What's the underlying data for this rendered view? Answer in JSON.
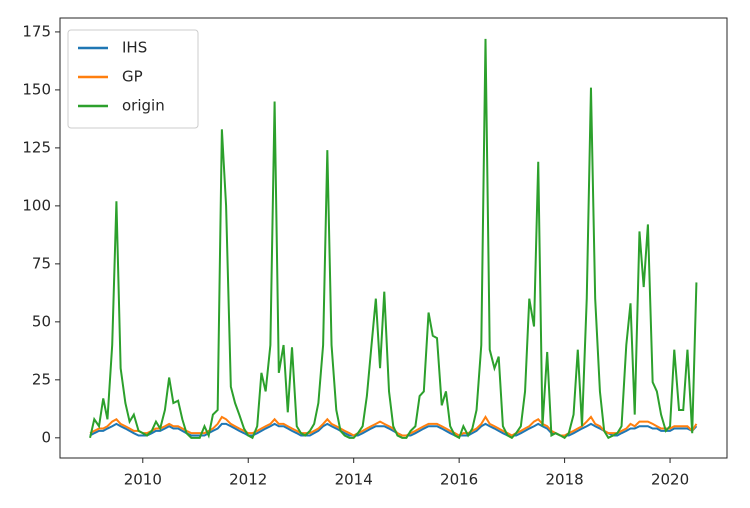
{
  "chart_data": {
    "type": "line",
    "x": [
      2009,
      2009.08,
      2009.17,
      2009.25,
      2009.33,
      2009.42,
      2009.5,
      2009.58,
      2009.67,
      2009.75,
      2009.83,
      2009.92,
      2010,
      2010.08,
      2010.17,
      2010.25,
      2010.33,
      2010.42,
      2010.5,
      2010.58,
      2010.67,
      2010.75,
      2010.83,
      2010.92,
      2011,
      2011.08,
      2011.17,
      2011.25,
      2011.33,
      2011.42,
      2011.5,
      2011.58,
      2011.67,
      2011.75,
      2011.83,
      2011.92,
      2012,
      2012.08,
      2012.17,
      2012.25,
      2012.33,
      2012.42,
      2012.5,
      2012.58,
      2012.67,
      2012.75,
      2012.83,
      2012.92,
      2013,
      2013.08,
      2013.17,
      2013.25,
      2013.33,
      2013.42,
      2013.5,
      2013.58,
      2013.67,
      2013.75,
      2013.83,
      2013.92,
      2014,
      2014.08,
      2014.17,
      2014.25,
      2014.33,
      2014.42,
      2014.5,
      2014.58,
      2014.67,
      2014.75,
      2014.83,
      2014.92,
      2015,
      2015.08,
      2015.17,
      2015.25,
      2015.33,
      2015.42,
      2015.5,
      2015.58,
      2015.67,
      2015.75,
      2015.83,
      2015.92,
      2016,
      2016.08,
      2016.17,
      2016.25,
      2016.33,
      2016.42,
      2016.5,
      2016.58,
      2016.67,
      2016.75,
      2016.83,
      2016.92,
      2017,
      2017.08,
      2017.17,
      2017.25,
      2017.33,
      2017.42,
      2017.5,
      2017.58,
      2017.67,
      2017.75,
      2017.83,
      2017.92,
      2018,
      2018.08,
      2018.17,
      2018.25,
      2018.33,
      2018.42,
      2018.5,
      2018.58,
      2018.67,
      2018.75,
      2018.83,
      2018.92,
      2019,
      2019.08,
      2019.17,
      2019.25,
      2019.33,
      2019.42,
      2019.5,
      2019.58,
      2019.67,
      2019.75,
      2019.83,
      2019.92,
      2020,
      2020.08,
      2020.17,
      2020.25,
      2020.33,
      2020.42,
      2020.5
    ],
    "series": [
      {
        "name": "IHS",
        "color": "#1f77b4",
        "values": [
          1,
          2,
          3,
          3,
          4,
          5,
          6,
          5,
          4,
          3,
          2,
          1,
          1,
          1,
          2,
          3,
          3,
          4,
          5,
          4,
          4,
          3,
          2,
          1,
          1,
          1,
          1,
          2,
          3,
          4,
          6,
          6,
          5,
          4,
          3,
          2,
          1,
          1,
          2,
          3,
          4,
          5,
          6,
          5,
          5,
          4,
          3,
          2,
          1,
          1,
          1,
          2,
          3,
          5,
          6,
          5,
          4,
          3,
          2,
          1,
          1,
          1,
          2,
          3,
          4,
          5,
          5,
          5,
          4,
          3,
          2,
          1,
          1,
          1,
          2,
          3,
          4,
          5,
          5,
          5,
          4,
          3,
          2,
          1,
          1,
          1,
          1,
          2,
          3,
          5,
          6,
          5,
          4,
          3,
          2,
          1,
          1,
          1,
          2,
          3,
          4,
          5,
          6,
          5,
          4,
          2,
          2,
          1,
          1,
          1,
          2,
          3,
          4,
          5,
          6,
          5,
          4,
          3,
          2,
          1,
          1,
          2,
          3,
          4,
          4,
          5,
          5,
          5,
          4,
          4,
          3,
          3,
          3,
          4,
          4,
          4,
          4,
          3,
          5
        ]
      },
      {
        "name": "GP",
        "color": "#ff7f0e",
        "values": [
          2,
          3,
          4,
          4,
          5,
          7,
          8,
          6,
          5,
          4,
          3,
          3,
          2,
          2,
          3,
          4,
          4,
          5,
          6,
          5,
          5,
          4,
          3,
          2,
          2,
          2,
          2,
          3,
          4,
          6,
          9,
          8,
          6,
          5,
          4,
          3,
          2,
          2,
          3,
          4,
          5,
          6,
          8,
          6,
          6,
          5,
          4,
          3,
          2,
          2,
          2,
          3,
          4,
          6,
          8,
          6,
          5,
          4,
          3,
          2,
          1,
          2,
          3,
          4,
          5,
          6,
          7,
          6,
          5,
          4,
          2,
          1,
          1,
          2,
          3,
          4,
          5,
          6,
          6,
          6,
          5,
          4,
          3,
          2,
          1,
          2,
          2,
          3,
          4,
          6,
          9,
          6,
          5,
          4,
          3,
          2,
          1,
          2,
          3,
          4,
          5,
          7,
          8,
          6,
          5,
          3,
          2,
          1,
          1,
          2,
          3,
          4,
          5,
          7,
          9,
          6,
          5,
          3,
          2,
          2,
          2,
          3,
          4,
          6,
          5,
          7,
          7,
          7,
          6,
          5,
          4,
          4,
          4,
          5,
          5,
          5,
          5,
          3,
          6
        ]
      },
      {
        "name": "origin",
        "color": "#2ca02c",
        "values": [
          0,
          8,
          5,
          17,
          8,
          40,
          102,
          30,
          15,
          7,
          10,
          3,
          2,
          1,
          3,
          7,
          4,
          12,
          26,
          15,
          16,
          8,
          2,
          0,
          0,
          0,
          5,
          1,
          10,
          12,
          133,
          100,
          22,
          15,
          10,
          4,
          1,
          0,
          5,
          28,
          20,
          40,
          145,
          28,
          40,
          11,
          39,
          5,
          2,
          1,
          3,
          6,
          15,
          40,
          124,
          40,
          12,
          3,
          1,
          0,
          0,
          2,
          5,
          18,
          38,
          60,
          30,
          63,
          20,
          5,
          1,
          0,
          0,
          3,
          5,
          18,
          20,
          54,
          44,
          43,
          14,
          20,
          5,
          1,
          0,
          5,
          1,
          4,
          12,
          40,
          172,
          38,
          30,
          35,
          5,
          1,
          0,
          2,
          5,
          20,
          60,
          48,
          119,
          5,
          37,
          1,
          2,
          1,
          0,
          2,
          10,
          38,
          5,
          60,
          151,
          60,
          20,
          3,
          0,
          1,
          2,
          5,
          40,
          58,
          10,
          89,
          65,
          92,
          24,
          20,
          10,
          3,
          5,
          38,
          12,
          12,
          38,
          2,
          67
        ]
      }
    ],
    "xlim": [
      2008.43,
      2021.08
    ],
    "xticks": [
      2010,
      2012,
      2014,
      2016,
      2018,
      2020
    ],
    "ylim": [
      -8.7,
      181
    ],
    "yticks": [
      0,
      25,
      50,
      75,
      100,
      125,
      150,
      175
    ],
    "legend": "upper left"
  }
}
